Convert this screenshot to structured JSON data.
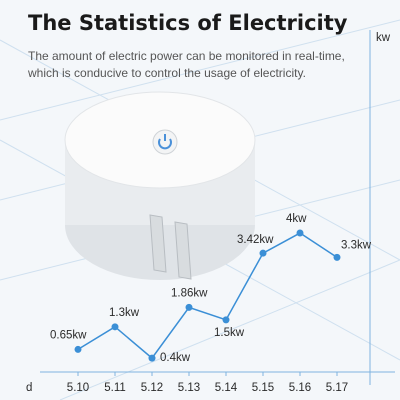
{
  "chart_data": {
    "type": "line",
    "title": "The Statistics of Electricity",
    "subtitle": [
      "The amount of electric power can be monitored in real-time,",
      "which is conducive to control the usage of electricity."
    ],
    "x_label": "d",
    "y_label": "kw",
    "categories": [
      "5.10",
      "5.11",
      "5.12",
      "5.13",
      "5.14",
      "5.15",
      "5.16",
      "5.17"
    ],
    "values": [
      0.65,
      1.3,
      0.4,
      1.86,
      1.5,
      3.42,
      4,
      3.3
    ],
    "value_labels": [
      "0.65kw",
      "1.3kw",
      "0.4kw",
      "1.86kw",
      "1.5kw",
      "3.42kw",
      "4kw",
      "3.3kw"
    ],
    "color": "#3b8fd6",
    "ylim": [
      0,
      9.7
    ]
  }
}
